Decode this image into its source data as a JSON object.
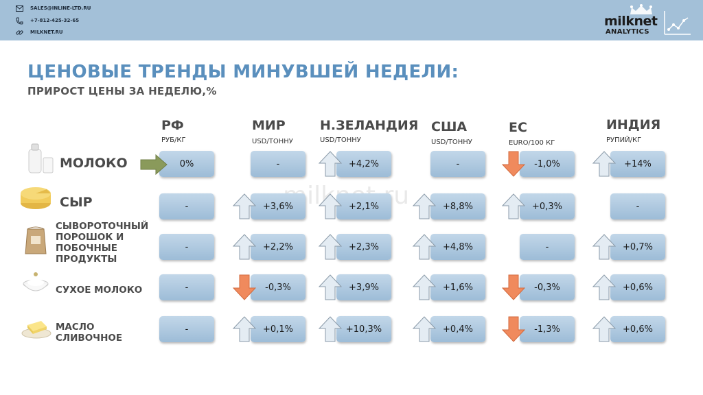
{
  "header": {
    "contacts": [
      {
        "icon": "envelope-icon",
        "text": "SALES@INLINE-LTD.RU"
      },
      {
        "icon": "phone-icon",
        "text": "+7-812-425-32-65"
      },
      {
        "icon": "link-icon",
        "text": "MILKNET.RU"
      }
    ],
    "logo": {
      "main": "milknet",
      "sub": "ANALYTICS"
    }
  },
  "title": "ЦЕНОВЫЕ ТРЕНДЫ МИНУВШЕЙ НЕДЕЛИ:",
  "subtitle": "ПРИРОСТ ЦЕНЫ ЗА НЕДЕЛЮ,%",
  "watermark": "milknet.ru",
  "columns": [
    {
      "name": "РФ",
      "unit": "РУБ/КГ"
    },
    {
      "name": "МИР",
      "unit": "USD/ТОННУ"
    },
    {
      "name": "Н.ЗЕЛАНДИЯ",
      "unit": "USD/ТОННУ"
    },
    {
      "name": "США",
      "unit": "USD/ТОННУ"
    },
    {
      "name": "ЕС",
      "unit": "EURO/100 КГ"
    },
    {
      "name": "ИНДИЯ",
      "unit": "РУПИЙ/КГ"
    }
  ],
  "products": [
    {
      "name": "МОЛОКО",
      "icon": "milk-bottle-icon"
    },
    {
      "name": "СЫР",
      "icon": "cheese-icon"
    },
    {
      "name": "СЫВОРОТОЧНЫЙ ПОРОШОК И ПОБОЧНЫЕ ПРОДУКТЫ",
      "lines": [
        "СЫВОРОТОЧНЫЙ",
        "ПОРОШОК И",
        "ПОБОЧНЫЕ",
        "ПРОДУКТЫ"
      ],
      "icon": "powder-sack-icon"
    },
    {
      "name": "СУХОЕ МОЛОКО",
      "icon": "milk-powder-bowl-icon"
    },
    {
      "name": "МАСЛО СЛИВОЧНОЕ",
      "lines": [
        "МАСЛО",
        "СЛИВОЧНОЕ"
      ],
      "icon": "butter-icon"
    }
  ],
  "colors": {
    "up": "#e4ecf3",
    "down": "#f08a5d",
    "neutral": "#8a9a5b",
    "cell": "#a9c5de",
    "title": "#5a8fbd"
  },
  "cells": [
    [
      {
        "value": "0%",
        "trend": "flat"
      },
      {
        "value": "-",
        "trend": "none"
      },
      {
        "value": "+4,2%",
        "trend": "up"
      },
      {
        "value": "-",
        "trend": "none"
      },
      {
        "value": "-1,0%",
        "trend": "down"
      },
      {
        "value": "+14%",
        "trend": "up"
      }
    ],
    [
      {
        "value": "-",
        "trend": "none"
      },
      {
        "value": "+3,6%",
        "trend": "up"
      },
      {
        "value": "+2,1%",
        "trend": "up"
      },
      {
        "value": "+8,8%",
        "trend": "up"
      },
      {
        "value": "+0,3%",
        "trend": "up"
      },
      {
        "value": "-",
        "trend": "none"
      }
    ],
    [
      {
        "value": "-",
        "trend": "none"
      },
      {
        "value": "+2,2%",
        "trend": "up"
      },
      {
        "value": "+2,3%",
        "trend": "up"
      },
      {
        "value": "+4,8%",
        "trend": "up"
      },
      {
        "value": "-",
        "trend": "none"
      },
      {
        "value": "+0,7%",
        "trend": "up"
      }
    ],
    [
      {
        "value": "-",
        "trend": "none"
      },
      {
        "value": "-0,3%",
        "trend": "down"
      },
      {
        "value": "+3,9%",
        "trend": "up"
      },
      {
        "value": "+1,6%",
        "trend": "up"
      },
      {
        "value": "-0,3%",
        "trend": "down"
      },
      {
        "value": "+0,6%",
        "trend": "up"
      }
    ],
    [
      {
        "value": "-",
        "trend": "none"
      },
      {
        "value": "+0,1%",
        "trend": "up"
      },
      {
        "value": "+10,3%",
        "trend": "up"
      },
      {
        "value": "+0,4%",
        "trend": "up"
      },
      {
        "value": "-1,3%",
        "trend": "down"
      },
      {
        "value": "+0,6%",
        "trend": "up"
      }
    ]
  ]
}
